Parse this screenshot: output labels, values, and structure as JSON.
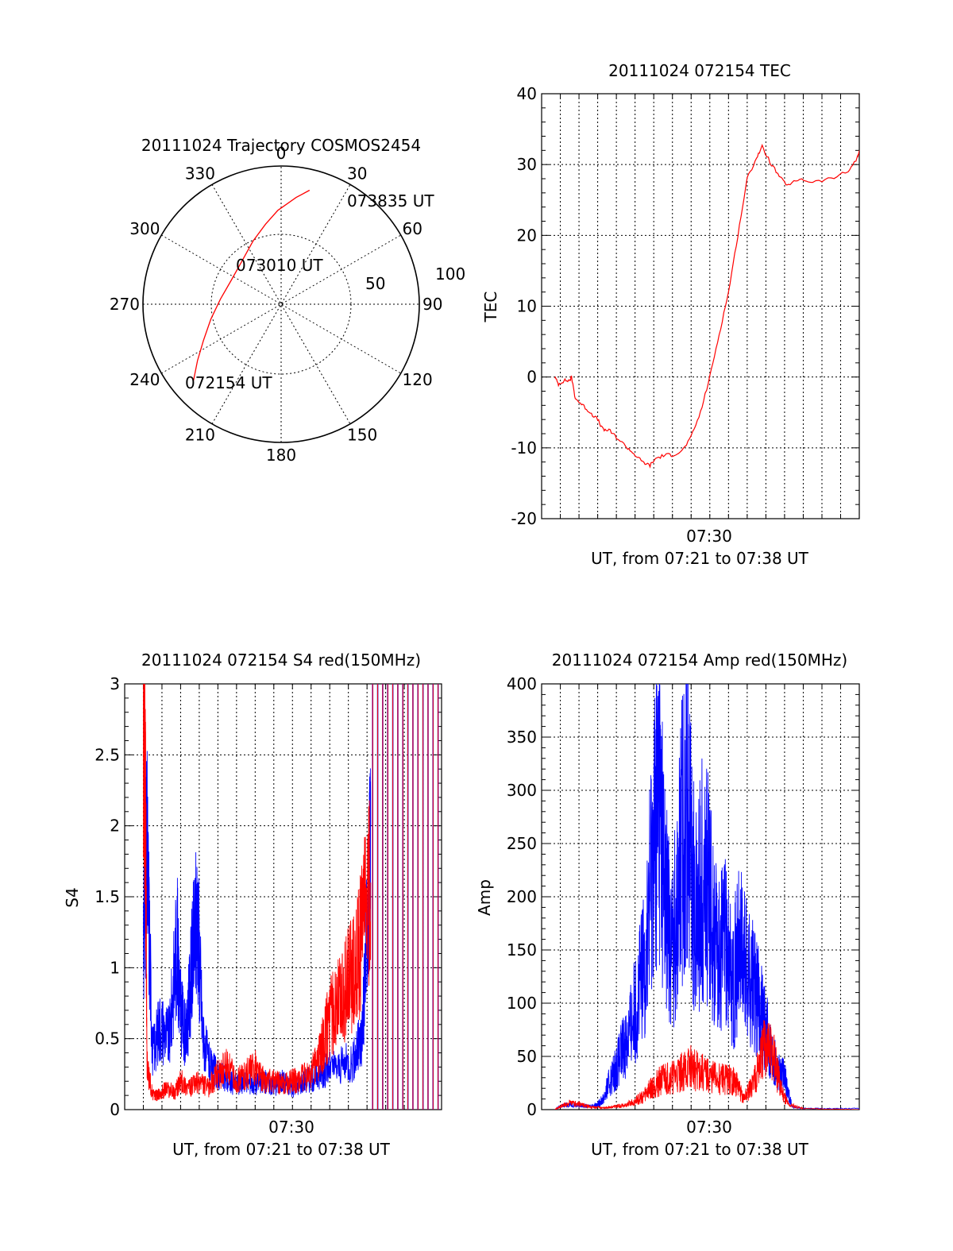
{
  "figure": {
    "background": "#ffffff",
    "colors": {
      "red": "#ff0000",
      "blue": "#0000ff"
    }
  },
  "chart_data": [
    {
      "id": "trajectory",
      "type": "polar",
      "title": "20111024 Trajectory COSMOS2454",
      "angle_labels": [
        "0",
        "30",
        "60",
        "90",
        "120",
        "150",
        "180",
        "210",
        "240",
        "270",
        "300",
        "330"
      ],
      "radius_labels": [
        "50",
        "100"
      ],
      "point_labels": [
        "073835 UT",
        "073010 UT",
        "072154 UT"
      ],
      "series": [
        {
          "color": "#ff0000",
          "points": [
            {
              "az": 229,
              "r": 84
            },
            {
              "az": 236,
              "r": 73
            },
            {
              "az": 245,
              "r": 62
            },
            {
              "az": 258,
              "r": 52
            },
            {
              "az": 275,
              "r": 44
            },
            {
              "az": 296,
              "r": 40
            },
            {
              "az": 317,
              "r": 42
            },
            {
              "az": 336,
              "r": 50
            },
            {
              "az": 349,
              "r": 59
            },
            {
              "az": 358,
              "r": 68
            },
            {
              "az": 8,
              "r": 78
            },
            {
              "az": 14,
              "r": 85
            }
          ]
        }
      ]
    },
    {
      "id": "tec",
      "type": "line",
      "title": "20111024 072154 TEC",
      "xlabel": "UT, from 07:21 to 07:38 UT",
      "ylabel": "TEC",
      "xlim": [
        7.35,
        7.6333
      ],
      "ylim": [
        -20,
        40
      ],
      "yticks": [
        "-20",
        "-10",
        "0",
        "10",
        "20",
        "30",
        "40"
      ],
      "xtick_label": "07:30",
      "series": [
        {
          "color": "#ff0000",
          "x": [
            7.3617,
            7.365,
            7.37,
            7.375,
            7.3767,
            7.38,
            7.3867,
            7.3933,
            7.4,
            7.405,
            7.41,
            7.4167,
            7.4267,
            7.4333,
            7.44,
            7.4467,
            7.4517,
            7.46,
            7.4667,
            7.475,
            7.4833,
            7.4917,
            7.5,
            7.5083,
            7.5167,
            7.525,
            7.5333,
            7.5417,
            7.5467,
            7.555,
            7.5633,
            7.57,
            7.58,
            7.5917,
            7.6083,
            7.6233,
            7.6317,
            7.6333
          ],
          "y": [
            0,
            -1,
            -0.5,
            -0.5,
            0,
            -3,
            -4,
            -5,
            -6,
            -7.5,
            -7.5,
            -8.5,
            -10,
            -11,
            -12,
            -12.5,
            -11.5,
            -11,
            -11,
            -10.5,
            -8.5,
            -5,
            0,
            6,
            12,
            20,
            28,
            31,
            32.5,
            30,
            28,
            27,
            28,
            27.5,
            28,
            29,
            31,
            32
          ]
        }
      ]
    },
    {
      "id": "s4",
      "type": "line",
      "title": "20111024 072154 S4 red(150MHz)",
      "xlabel": "UT, from 07:21 to 07:38 UT",
      "ylabel": "S4",
      "xlim": [
        7.35,
        7.6333
      ],
      "ylim": [
        0,
        3
      ],
      "yticks": [
        "0",
        "0.5",
        "1",
        "1.5",
        "2",
        "2.5",
        "3"
      ],
      "xtick_label": "07:30",
      "series": [
        {
          "color": "#0000ff",
          "x": [
            7.3667,
            7.37,
            7.375,
            7.3817,
            7.39,
            7.3967,
            7.4,
            7.405,
            7.41,
            7.415,
            7.42,
            7.4267,
            7.4333,
            7.4417,
            7.45,
            7.4583,
            7.4667,
            7.475,
            7.4833,
            7.4917,
            7.5,
            7.5083,
            7.5167,
            7.5233,
            7.53,
            7.5417,
            7.555,
            7.5617,
            7.5667,
            7.57
          ],
          "y": [
            1.3,
            1.8,
            0.4,
            0.6,
            0.5,
            1.2,
            0.7,
            0.5,
            1.0,
            1.4,
            0.5,
            0.3,
            0.25,
            0.2,
            0.18,
            0.2,
            0.18,
            0.2,
            0.17,
            0.2,
            0.15,
            0.2,
            0.22,
            0.25,
            0.28,
            0.3,
            0.35,
            0.5,
            1.2,
            2.0
          ]
        },
        {
          "color": "#ff0000",
          "x": [
            7.3667,
            7.3683,
            7.37,
            7.375,
            7.38,
            7.3867,
            7.395,
            7.4,
            7.4083,
            7.4167,
            7.425,
            7.4333,
            7.4417,
            7.45,
            7.4583,
            7.4667,
            7.475,
            7.4833,
            7.4917,
            7.5,
            7.5083,
            7.5167,
            7.525,
            7.53,
            7.5367,
            7.5433,
            7.55,
            7.5567,
            7.5617,
            7.57
          ],
          "y": [
            3.0,
            2.5,
            0.3,
            0.1,
            0.1,
            0.15,
            0.12,
            0.2,
            0.15,
            0.2,
            0.15,
            0.25,
            0.3,
            0.2,
            0.25,
            0.3,
            0.2,
            0.2,
            0.18,
            0.2,
            0.22,
            0.25,
            0.4,
            0.55,
            0.7,
            0.8,
            0.9,
            1.0,
            1.2,
            1.6
          ]
        }
      ]
    },
    {
      "id": "amp",
      "type": "line",
      "title": "20111024 072154 Amp red(150MHz)",
      "xlabel": "UT, from 07:21 to 07:38 UT",
      "ylabel": "Amp",
      "xlim": [
        7.35,
        7.6333
      ],
      "ylim": [
        0,
        400
      ],
      "yticks": [
        "0",
        "50",
        "100",
        "150",
        "200",
        "250",
        "300",
        "350",
        "400"
      ],
      "xtick_label": "07:30",
      "series": [
        {
          "color": "#0000ff",
          "x": [
            7.3617,
            7.3667,
            7.375,
            7.3833,
            7.3917,
            7.4,
            7.405,
            7.41,
            7.4167,
            7.4233,
            7.43,
            7.4367,
            7.4433,
            7.45,
            7.455,
            7.46,
            7.4667,
            7.4733,
            7.48,
            7.4867,
            7.4933,
            7.5,
            7.5067,
            7.5133,
            7.52,
            7.5267,
            7.5333,
            7.54,
            7.5467,
            7.5533,
            7.56,
            7.5667,
            7.5733,
            7.5833,
            7.6,
            7.6333
          ],
          "y": [
            0,
            3,
            5,
            4,
            3,
            5,
            10,
            25,
            40,
            60,
            80,
            110,
            150,
            260,
            300,
            200,
            150,
            230,
            310,
            180,
            220,
            200,
            140,
            160,
            120,
            150,
            130,
            110,
            90,
            60,
            40,
            30,
            3,
            1,
            1,
            1
          ]
        },
        {
          "color": "#ff0000",
          "x": [
            7.3617,
            7.3667,
            7.375,
            7.3833,
            7.3917,
            7.4,
            7.4083,
            7.4167,
            7.425,
            7.4333,
            7.44,
            7.4467,
            7.4533,
            7.46,
            7.4667,
            7.475,
            7.4833,
            7.4917,
            7.5,
            7.5083,
            7.5167,
            7.5233,
            7.53,
            7.5367,
            7.5433,
            7.55,
            7.5567,
            7.5633,
            7.57,
            7.5833,
            7.6333
          ],
          "y": [
            0,
            3,
            6,
            5,
            3,
            2,
            2,
            3,
            4,
            8,
            12,
            20,
            25,
            30,
            30,
            35,
            40,
            35,
            30,
            30,
            28,
            25,
            10,
            20,
            40,
            60,
            50,
            20,
            5,
            1,
            0
          ]
        }
      ]
    }
  ]
}
